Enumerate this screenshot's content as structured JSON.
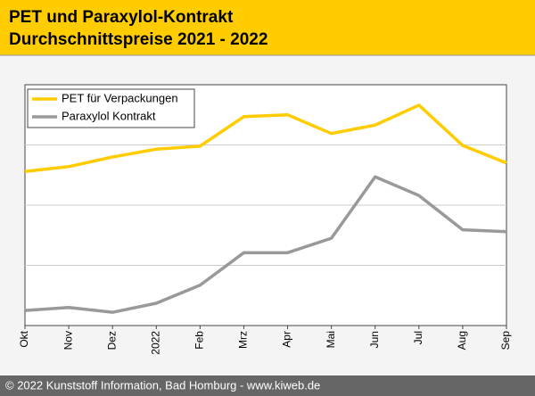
{
  "chart_data": {
    "type": "line",
    "title": "PET und Paraxylol-Kontrakt",
    "subtitle": "Durchschnittspreise 2021 - 2022",
    "categories": [
      "Okt",
      "Nov",
      "Dez",
      "2022",
      "Feb",
      "Mrz",
      "Apr",
      "Mai",
      "Jun",
      "Jul",
      "Aug",
      "Sep"
    ],
    "series": [
      {
        "name": "PET für Verpackungen",
        "color": "#ffcc00",
        "values": [
          2.56,
          2.64,
          2.8,
          2.93,
          2.98,
          3.47,
          3.5,
          3.19,
          3.33,
          3.66,
          2.99,
          2.7
        ]
      },
      {
        "name": "Paraxylol Kontrakt",
        "color": "#999999",
        "values": [
          0.25,
          0.3,
          0.22,
          0.37,
          0.67,
          1.21,
          1.21,
          1.45,
          2.47,
          2.16,
          1.59,
          1.56
        ]
      }
    ],
    "ylim": [
      0,
      4
    ],
    "yticks": [
      1,
      2,
      3
    ],
    "grid": true,
    "legend": "top-left"
  },
  "footer": "© 2022 Kunststoff Information, Bad Homburg - www.kiweb.de"
}
